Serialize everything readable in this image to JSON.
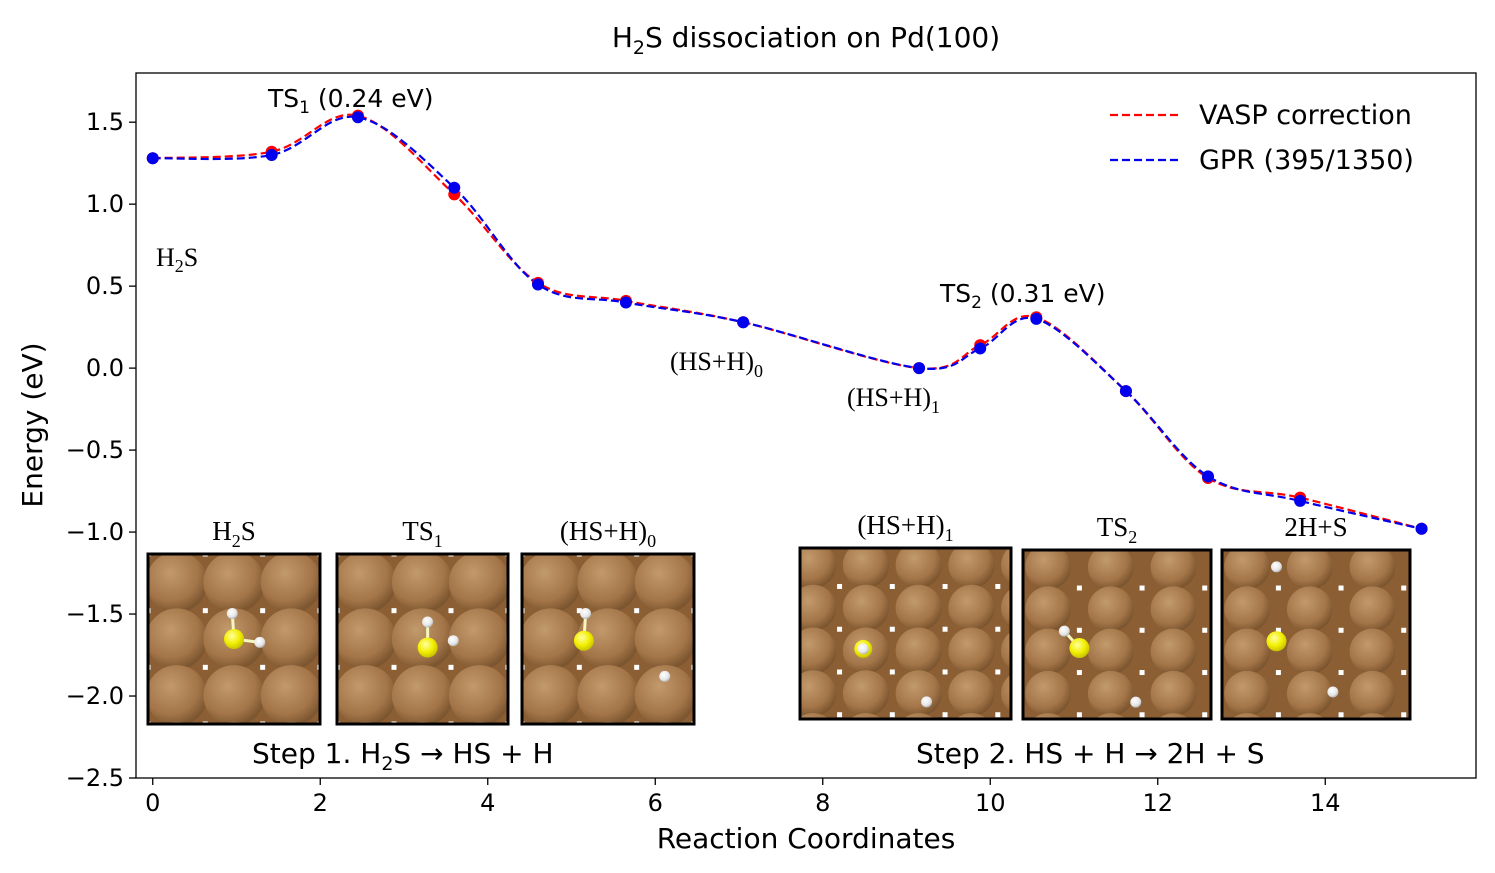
{
  "chart_data": {
    "type": "line",
    "title_main": "H",
    "title_sub": "2",
    "title_rest": "S dissociation on Pd(100)",
    "xlabel": "Reaction Coordinates",
    "ylabel": "Energy (eV)",
    "xlim": [
      -0.2,
      15.8
    ],
    "ylim": [
      -2.5,
      1.8
    ],
    "xticks": [
      0,
      2,
      4,
      6,
      8,
      10,
      12,
      14
    ],
    "xtick_labels": [
      "0",
      "2",
      "4",
      "6",
      "8",
      "10",
      "12",
      "14"
    ],
    "yticks": [
      1.5,
      1.0,
      0.5,
      0.0,
      -0.5,
      -1.0,
      -1.5,
      -2.0,
      -2.5
    ],
    "ytick_labels": [
      "1.5",
      "1.0",
      "0.5",
      "0.0",
      "−0.5",
      "−1.0",
      "−1.5",
      "−2.0",
      "−2.5"
    ],
    "legend_position": "top-right",
    "series": [
      {
        "name": "VASP correction",
        "color": "#ff0000",
        "style": "dashed",
        "x": [
          0,
          1.42,
          2.45,
          3.6,
          4.6,
          5.65,
          7.05,
          9.15,
          9.88,
          10.55,
          11.62,
          12.6,
          13.7,
          15.15
        ],
        "y": [
          1.28,
          1.32,
          1.54,
          1.06,
          0.52,
          0.41,
          0.28,
          0.0,
          0.14,
          0.31,
          -0.14,
          -0.67,
          -0.79,
          -0.98
        ]
      },
      {
        "name": "GPR (395/1350)",
        "color": "#0000ee",
        "style": "dashed",
        "x": [
          0,
          1.42,
          2.45,
          3.6,
          4.6,
          5.65,
          7.05,
          9.15,
          9.88,
          10.55,
          11.62,
          12.6,
          13.7,
          15.15
        ],
        "y": [
          1.28,
          1.3,
          1.53,
          1.1,
          0.51,
          0.4,
          0.28,
          0.0,
          0.12,
          0.3,
          -0.14,
          -0.66,
          -0.81,
          -0.98
        ]
      }
    ],
    "annotations": {
      "ts1": {
        "main": "TS",
        "sub": "1",
        "rest": " (0.24 eV)"
      },
      "ts2": {
        "main": "TS",
        "sub": "2",
        "rest": " (0.31 eV)"
      },
      "h2s": {
        "main": "H",
        "sub": "2",
        "rest": "S"
      },
      "hsh0": {
        "main": "(HS+H)",
        "sub": "0"
      },
      "hsh1": {
        "main": "(HS+H)",
        "sub": "1"
      },
      "step1": {
        "pre": "Step 1. H",
        "sub": "2",
        "post": "S → HS + H"
      },
      "step2": {
        "text": "Step 2. HS + H → 2H + S"
      }
    },
    "insets": [
      {
        "main": "H",
        "sub": "2",
        "rest": "S"
      },
      {
        "main": "TS",
        "sub": "1",
        "rest": ""
      },
      {
        "main": "(HS+H)",
        "sub": "0",
        "rest": ""
      },
      {
        "main": "(HS+H)",
        "sub": "1",
        "rest": ""
      },
      {
        "main": "TS",
        "sub": "2",
        "rest": ""
      },
      {
        "main": "2H+S",
        "sub": "",
        "rest": ""
      }
    ],
    "colors": {
      "pd_atom": "#a5784a",
      "sulfur": "#f2f000",
      "hydrogen": "#f2f2f2"
    }
  }
}
